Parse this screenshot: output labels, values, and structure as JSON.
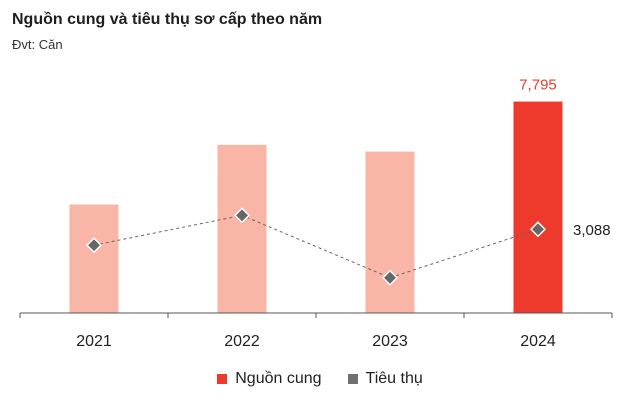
{
  "chart_data": {
    "type": "bar",
    "title": "Nguồn cung và tiêu thụ sơ cấp theo năm",
    "subtitle": "Đvt: Căn",
    "categories": [
      "2021",
      "2022",
      "2023",
      "2024"
    ],
    "ylim": [
      0,
      8000
    ],
    "series": [
      {
        "name": "Nguồn cung",
        "kind": "bar",
        "values": [
          4000,
          6200,
          5950,
          7795
        ],
        "colors": [
          "#f9b5a6",
          "#f9b5a6",
          "#f9b5a6",
          "#ee3a2d"
        ],
        "data_labels": [
          "",
          "",
          "",
          "7,795"
        ],
        "label_color": "#ee3a2d"
      },
      {
        "name": "Tiêu thụ",
        "kind": "line",
        "values": [
          2500,
          3600,
          1300,
          3088
        ],
        "color": "#666666",
        "line_style": "dashed",
        "marker": "diamond",
        "data_labels": [
          "",
          "",
          "",
          "3,088"
        ]
      }
    ],
    "grid": false,
    "legend_position": "bottom",
    "legend": [
      {
        "label": "Nguồn cung",
        "color": "#ee3a2d"
      },
      {
        "label": "Tiêu thụ",
        "color": "#707070"
      }
    ]
  }
}
